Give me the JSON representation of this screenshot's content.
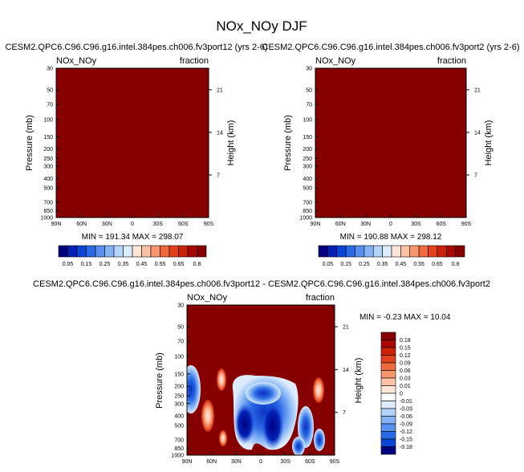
{
  "figure": {
    "title": "NOx_NOy DJF"
  },
  "chart_data": [
    {
      "type": "heatmap",
      "title": "CESM2.QPC6.C96.C96.g16.intel.384pes.ch006.fv3port12 (yrs 2-6)",
      "left_label": "NOx_NOy",
      "right_label": "fraction",
      "ylabel": "Pressure (mb)",
      "ylabel_right": "Height (km)",
      "y_ticks": [
        "30",
        "50",
        "70",
        "100",
        "150",
        "200",
        "250",
        "300",
        "400",
        "500",
        "700",
        "850",
        "1000"
      ],
      "y_ticks_right": [
        "21",
        "14",
        "7"
      ],
      "x_ticks": [
        "90N",
        "60N",
        "30N",
        "0",
        "30S",
        "60S",
        "90S"
      ],
      "fill_color": "#870000",
      "stats_text": "MIN = 191.34   MAX = 298.07"
    },
    {
      "type": "heatmap",
      "title": "CESM2.QPC6.C96.C96.g16.intel.384pes.ch006.fv3port2 (yrs 2-6)",
      "left_label": "NOx_NOy",
      "right_label": "fraction",
      "ylabel": "Pressure (mb)",
      "ylabel_right": "Height (km)",
      "y_ticks": [
        "30",
        "50",
        "70",
        "100",
        "150",
        "200",
        "250",
        "300",
        "400",
        "500",
        "700",
        "850",
        "1000"
      ],
      "y_ticks_right": [
        "21",
        "14",
        "7"
      ],
      "x_ticks": [
        "90N",
        "60N",
        "30N",
        "0",
        "30S",
        "60S",
        "90S"
      ],
      "fill_color": "#870000",
      "stats_text": "MIN = 190.88   MAX = 298.12"
    },
    {
      "type": "heatmap",
      "title": "CESM2.QPC6.C96.C96.g16.intel.384pes.ch006.fv3port12 - CESM2.QPC6.C96.C96.g16.intel.384pes.ch006.fv3port2",
      "left_label": "NOx_NOy",
      "right_label": "fraction",
      "ylabel": "Pressure (mb)",
      "ylabel_right": "Height (km)",
      "y_ticks": [
        "30",
        "50",
        "70",
        "100",
        "150",
        "200",
        "250",
        "300",
        "400",
        "500",
        "700",
        "850",
        "1000"
      ],
      "y_ticks_right": [
        "21",
        "14",
        "7"
      ],
      "x_ticks": [
        "90N",
        "60N",
        "30N",
        "0",
        "30S",
        "60S",
        "90S"
      ],
      "fill_color": "#870000",
      "stats_text": "MIN =  -0.23   MAX =  10.04"
    }
  ],
  "colorbar_top": {
    "labels": [
      "0.05",
      "0.15",
      "0.25",
      "0.35",
      "0.45",
      "0.55",
      "0.65",
      "0.8"
    ],
    "colors": [
      "#00007f",
      "#0021b6",
      "#0a45d6",
      "#2a6ae6",
      "#5790ef",
      "#84b3f5",
      "#b4d3fa",
      "#dcecfd",
      "#fde5d8",
      "#fbc2a6",
      "#f7966c",
      "#ef6a3d",
      "#e1411c",
      "#c92209",
      "#a90800",
      "#870000"
    ]
  },
  "colorbar_diff": {
    "labels": [
      "0.18",
      "0.15",
      "0.12",
      "0.09",
      "0.06",
      "0.03",
      "0.01",
      "0",
      "-0.01",
      "-0.03",
      "-0.06",
      "-0.09",
      "-0.12",
      "-0.15",
      "-0.18"
    ],
    "colors": [
      "#870000",
      "#a90800",
      "#c92209",
      "#e1411c",
      "#ef6a3d",
      "#f7966c",
      "#fbc2a6",
      "#fde5d8",
      "#ffffff",
      "#dcecfd",
      "#b4d3fa",
      "#84b3f5",
      "#5790ef",
      "#2a6ae6",
      "#0a45d6",
      "#00007f"
    ]
  }
}
